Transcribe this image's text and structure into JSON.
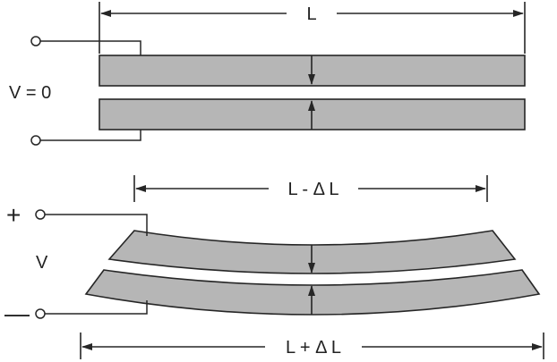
{
  "labels": {
    "top_length": "L",
    "voltage_zero": "V = 0",
    "inner_length": "L - Δ L",
    "plus_sign": "+",
    "voltage": "V",
    "minus_sign": "—",
    "outer_length": "L + Δ L"
  },
  "colors": {
    "layer_fill": "#b6b6b6",
    "line": "#262626",
    "background": "#ffffff"
  }
}
